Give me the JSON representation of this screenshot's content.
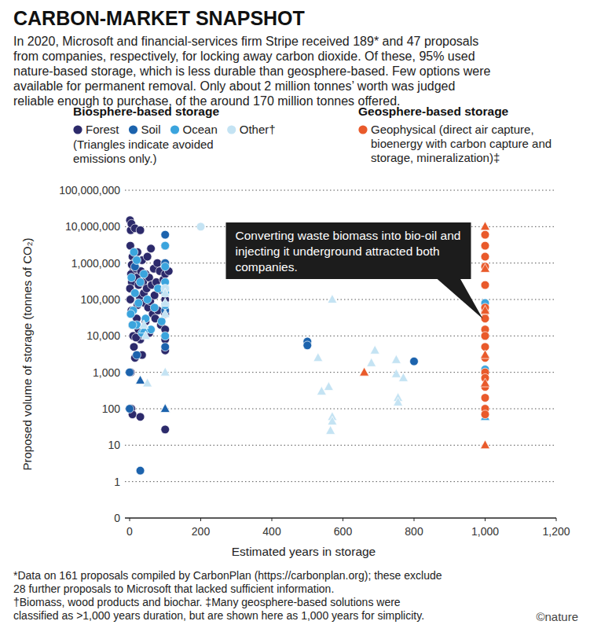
{
  "chart_data": {
    "type": "scatter",
    "title": "CARBON-MARKET SNAPSHOT",
    "subtitle": [
      "In 2020, Microsoft and financial-services firm Stripe received 189* and 47 proposals",
      "from companies, respectively, for locking away carbon dioxide. Of these, 95% used",
      "nature-based storage, which is less durable than geosphere-based. Few options were",
      "available for permanent removal. Only about 2 million tonnes’ worth was judged",
      "reliable enough to purchase, of the around 170 million tonnes offered."
    ],
    "x_label": "Estimated years in storage",
    "y_label": "Proposed volume of storage (tonnes of CO₂)",
    "xlim": [
      0,
      1200
    ],
    "xticks": [
      0,
      200,
      400,
      600,
      800,
      {
        "value": 1000,
        "label": "1,000"
      },
      {
        "value": 1200,
        "label": "1,200"
      }
    ],
    "ylim": [
      0,
      100000000
    ],
    "yticks": [
      0,
      1,
      10,
      100,
      {
        "value": 1000,
        "label": "1,000"
      },
      {
        "value": 10000,
        "label": "10,000"
      },
      {
        "value": 100000,
        "label": "100,000"
      },
      {
        "value": 1000000,
        "label": "1,000,000"
      },
      {
        "value": 10000000,
        "label": "10,000,000"
      },
      {
        "value": 100000000,
        "label": "100,000,000"
      }
    ],
    "log": "y",
    "grid": true,
    "legend_groups": [
      {
        "title": "Biosphere-based storage",
        "note": "(Triangles indicate avoided emissions only.)",
        "names": [
          "Forest",
          "Soil",
          "Ocean",
          "Other†"
        ]
      },
      {
        "title": "Geosphere-based storage",
        "names": [
          "Geophysical (direct air capture, bioenergy with carbon capture and storage, mineralization)‡"
        ]
      }
    ],
    "series": [
      {
        "name": "Forest",
        "color": "#2c2a6b",
        "marker": "circle",
        "x": [
          1,
          3,
          5,
          2,
          8,
          10,
          4,
          6,
          12,
          15,
          18,
          20,
          22,
          25,
          28,
          30,
          32,
          35,
          38,
          40,
          42,
          45,
          48,
          50,
          52,
          55,
          58,
          60,
          62,
          65,
          68,
          70,
          72,
          75,
          78,
          80,
          85,
          88,
          90,
          95,
          100,
          100,
          100,
          100,
          100,
          100,
          100,
          100,
          100,
          110,
          2,
          5,
          8,
          10,
          12,
          15,
          20,
          25,
          30,
          35,
          40,
          3,
          5,
          8,
          30,
          100,
          18,
          22,
          45,
          55,
          1,
          6
        ],
        "values": [
          15000000,
          8000000,
          12000000,
          3000000,
          1500000,
          600000,
          500000,
          300000,
          1000000,
          9000000,
          700000,
          400000,
          2000000,
          250000,
          120000,
          8000000,
          600000,
          1200000,
          300000,
          150000,
          80000,
          500000,
          200000,
          1500000,
          60000,
          400000,
          90000,
          2500000,
          250000,
          40000,
          700000,
          130000,
          30000,
          300000,
          1000000,
          50000,
          600000,
          20000,
          180000,
          350000,
          1000000,
          100000,
          40000,
          15000,
          8000,
          4000,
          200000,
          500000,
          3000000,
          600000,
          100000,
          50000,
          20000,
          10000,
          5000,
          2500,
          30000,
          15000,
          8000,
          3000,
          12000,
          1000,
          100,
          70,
          60,
          27,
          9000,
          70000,
          25000,
          12000,
          200000,
          900000
        ]
      },
      {
        "name": "Soil",
        "color": "#1c63ad",
        "marker": "circle",
        "x": [
          0,
          0,
          30,
          100,
          100,
          100,
          100,
          100,
          15,
          20,
          500,
          500,
          800
        ],
        "values": [
          1000,
          100,
          2,
          6000000,
          1000000,
          200000,
          50000,
          5000,
          800000,
          3000,
          7000,
          5500,
          2000
        ]
      },
      {
        "name": "Soil",
        "color": "#1c63ad",
        "marker": "triangle",
        "x": [
          100,
          30
        ],
        "values": [
          100,
          600
        ]
      },
      {
        "name": "Ocean",
        "color": "#3ba4dd",
        "marker": "circle",
        "x": [
          5,
          10,
          15,
          20,
          25,
          30,
          35,
          40,
          45,
          50,
          60,
          70,
          80,
          90,
          100,
          100,
          100,
          100,
          100,
          100,
          12,
          20,
          8,
          3,
          1000,
          1000,
          1000
        ],
        "values": [
          400000,
          50000,
          150000,
          20000,
          80000,
          300000,
          12000,
          500000,
          30000,
          100000,
          15000,
          60000,
          200000,
          25000,
          800000,
          300000,
          150000,
          70000,
          10000,
          3000000,
          2000000,
          1200000,
          20000,
          40000,
          80000,
          10000,
          1200
        ]
      },
      {
        "name": "Ocean",
        "color": "#3ba4dd",
        "marker": "triangle",
        "x": [
          1000,
          40
        ],
        "values": [
          60,
          15000
        ]
      },
      {
        "name": "Other†",
        "color": "#c4e3f3",
        "marker": "circle",
        "x": [
          200,
          100
        ],
        "values": [
          10000000,
          200000
        ]
      },
      {
        "name": "Other†",
        "color": "#c4e3f3",
        "marker": "triangle",
        "x": [
          570,
          540,
          560,
          530,
          570,
          570,
          565,
          680,
          690,
          750,
          750,
          755,
          755,
          770,
          40,
          45,
          50,
          100,
          100,
          100,
          100
        ],
        "values": [
          100000,
          300,
          400,
          2500,
          60,
          45,
          25,
          1800,
          4000,
          2200,
          900,
          200,
          150,
          700,
          20000,
          10000,
          500,
          150000,
          80000,
          40000,
          1000
        ]
      },
      {
        "name": "Geophysical (direct air capture, bioenergy with carbon capture and storage, mineralization)‡",
        "color": "#e95a2b",
        "marker": "circle",
        "x": [
          1000,
          1000,
          1000,
          1000,
          1000,
          1000,
          1000,
          1000,
          1000,
          1000,
          1000,
          1000,
          1000,
          1000,
          1000,
          1000,
          1000,
          1000
        ],
        "values": [
          6000000,
          3000000,
          1500000,
          800000,
          250000,
          45000,
          30000,
          15000,
          10000,
          5000,
          2500,
          1000,
          700,
          400,
          200,
          100,
          70,
          60000
        ]
      },
      {
        "name": "Geophysical (direct air capture, bioenergy with carbon capture and storage, mineralization)‡",
        "color": "#e95a2b",
        "marker": "triangle",
        "x": [
          1000,
          1000,
          1000,
          1000,
          1000,
          1000,
          660
        ],
        "values": [
          10000000,
          700000,
          50000,
          3000,
          500,
          10,
          1000
        ]
      }
    ],
    "annotations": [
      {
        "text": "Converting waste biomass into bio-oil and injecting it underground attracted both companies.",
        "x": 1000,
        "y": 20000
      }
    ],
    "footnotes": [
      "*Data on 161 proposals compiled by CarbonPlan (https://carbonplan.org); these exclude",
      "28 further proposals to Microsoft that lacked sufficient information.",
      "†Biomass, wood products and biochar. ‡Many geosphere-based solutions were",
      "classified as >1,000 years duration, but are shown here as 1,000 years for simplicity."
    ],
    "credit": "©nature"
  }
}
